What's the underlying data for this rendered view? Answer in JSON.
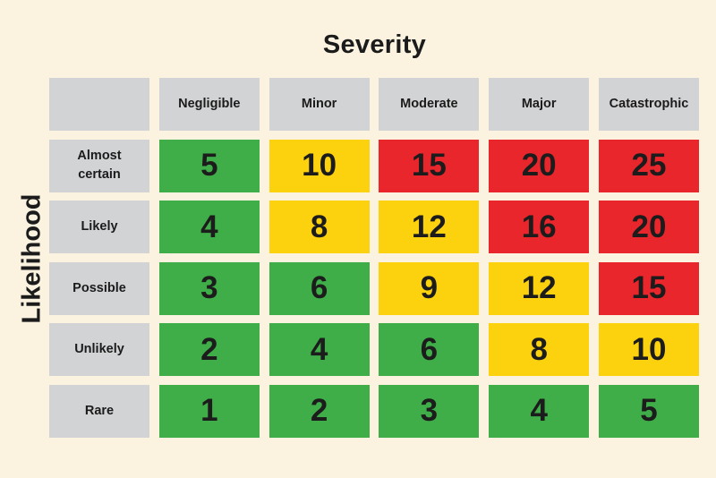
{
  "chart_data": {
    "type": "heatmap",
    "title": "Severity",
    "ylabel": "Likelihood",
    "columns": [
      "Negligible",
      "Minor",
      "Moderate",
      "Major",
      "Catastrophic"
    ],
    "rows": [
      "Almost\ncertain",
      "Likely",
      "Possible",
      "Unlikely",
      "Rare"
    ],
    "values": [
      [
        5,
        10,
        15,
        20,
        25
      ],
      [
        4,
        8,
        12,
        16,
        20
      ],
      [
        3,
        6,
        9,
        12,
        15
      ],
      [
        2,
        4,
        6,
        8,
        10
      ],
      [
        1,
        2,
        3,
        4,
        5
      ]
    ],
    "levels": [
      [
        "low",
        "medium",
        "high",
        "high",
        "high"
      ],
      [
        "low",
        "medium",
        "medium",
        "high",
        "high"
      ],
      [
        "low",
        "low",
        "medium",
        "medium",
        "high"
      ],
      [
        "low",
        "low",
        "low",
        "medium",
        "medium"
      ],
      [
        "low",
        "low",
        "low",
        "low",
        "low"
      ]
    ],
    "colors": {
      "low": "#3fae49",
      "medium": "#fcd20f",
      "high": "#e8262c",
      "header": "#d2d3d5",
      "background": "#fbf3e0"
    }
  }
}
